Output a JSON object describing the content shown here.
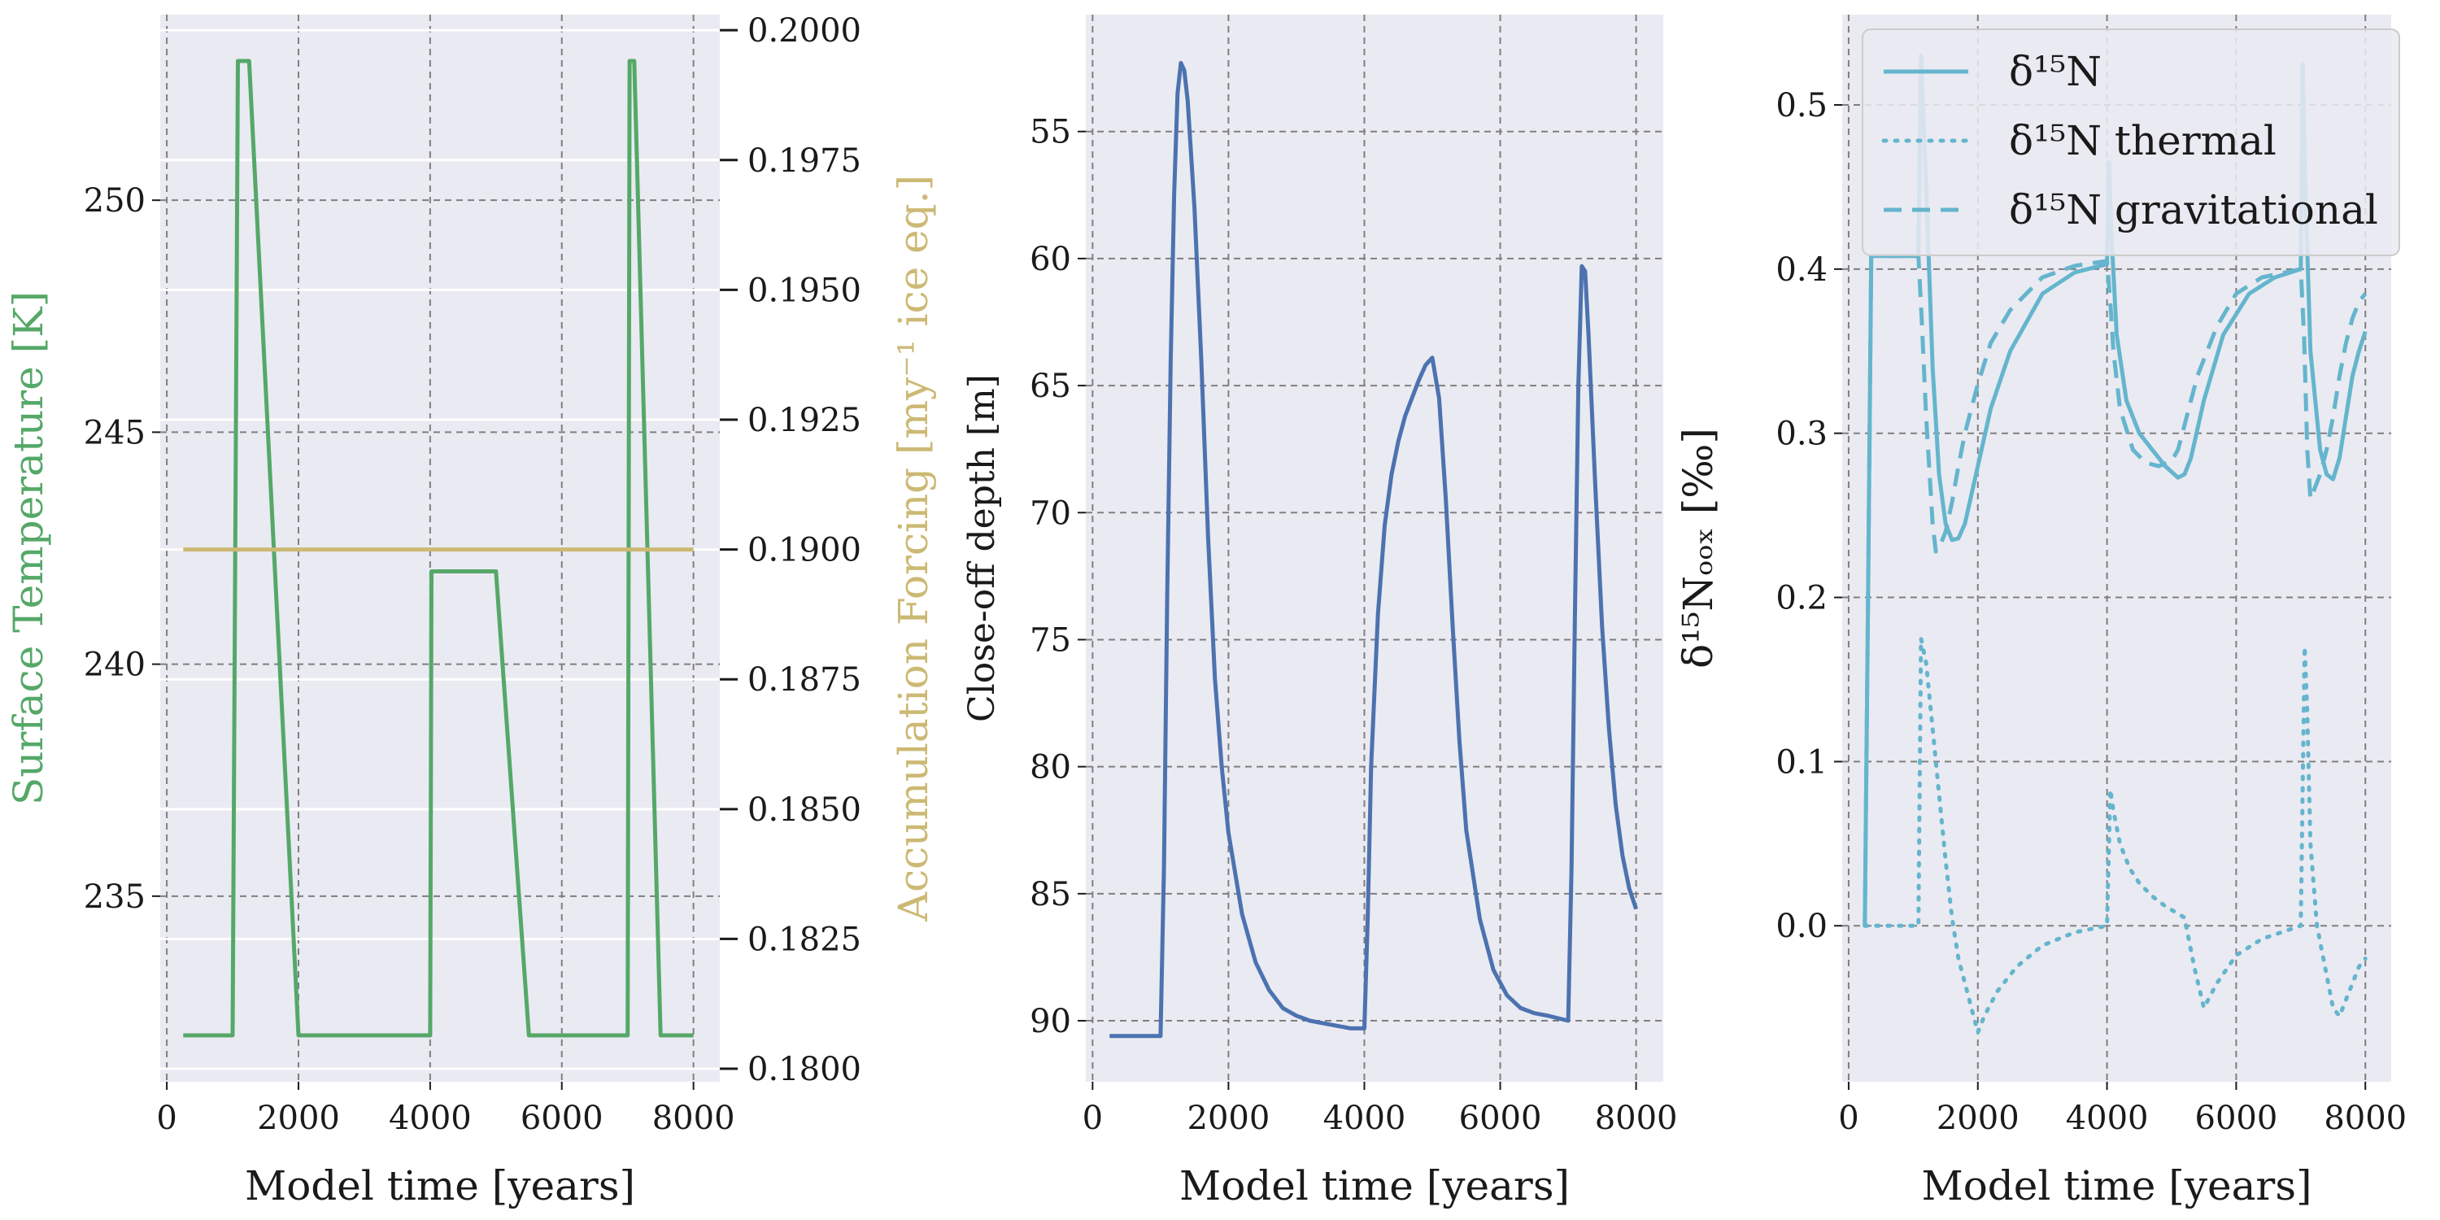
{
  "chart_data": [
    {
      "type": "line",
      "panel": "left",
      "xlabel": "Model time [years]",
      "ylabel": "Surface Temperature [K]",
      "ylabel_color": "#55a868",
      "y2label": "Accumulation Forcing [my⁻¹ ice eq.]",
      "y2label_color": "#ccb974",
      "xlim": [
        -100,
        8400
      ],
      "ylim": [
        231.0,
        254.0
      ],
      "y2lim": [
        0.17975,
        0.2003
      ],
      "xticks": [
        0,
        2000,
        4000,
        6000,
        8000
      ],
      "yticks": [
        235,
        240,
        245,
        250
      ],
      "y2ticks": [
        0.18,
        0.1825,
        0.185,
        0.1875,
        0.19,
        0.1925,
        0.195,
        0.1975,
        0.2
      ],
      "y2ticklabels": [
        "0.1800",
        "0.1825",
        "0.1850",
        "0.1875",
        "0.1900",
        "0.1925",
        "0.1950",
        "0.1975",
        "0.2000"
      ],
      "grid": true,
      "series": [
        {
          "axis": "left",
          "color": "#55a868",
          "style": "solid",
          "x": [
            250,
            1000,
            1080,
            1250,
            2000,
            4000,
            4020,
            5000,
            5500,
            7000,
            7030,
            7100,
            7500,
            8000
          ],
          "y": [
            232,
            232,
            253,
            253,
            232,
            232,
            242,
            242,
            232,
            232,
            253,
            253,
            232,
            232
          ]
        },
        {
          "axis": "right",
          "color": "#ccb974",
          "style": "solid",
          "x": [
            250,
            8000
          ],
          "y": [
            0.19,
            0.19
          ]
        }
      ]
    },
    {
      "type": "line",
      "panel": "middle",
      "xlabel": "Model time [years]",
      "ylabel": "Close-off depth [m]",
      "xlim": [
        -100,
        8400
      ],
      "ylim": [
        92.4,
        50.4
      ],
      "inverted_y": true,
      "xticks": [
        0,
        2000,
        4000,
        6000,
        8000
      ],
      "yticks": [
        55,
        60,
        65,
        70,
        75,
        80,
        85,
        90
      ],
      "grid": true,
      "series": [
        {
          "color": "#4c72b0",
          "style": "solid",
          "x": [
            250,
            1000,
            1050,
            1100,
            1150,
            1200,
            1250,
            1300,
            1350,
            1400,
            1500,
            1600,
            1700,
            1800,
            1900,
            2000,
            2200,
            2400,
            2600,
            2800,
            3000,
            3200,
            3400,
            3600,
            3800,
            4000,
            4050,
            4100,
            4200,
            4300,
            4400,
            4500,
            4600,
            4700,
            4800,
            4900,
            5000,
            5100,
            5200,
            5300,
            5400,
            5500,
            5700,
            5900,
            6100,
            6300,
            6500,
            6700,
            7000,
            7050,
            7100,
            7150,
            7200,
            7250,
            7300,
            7400,
            7500,
            7600,
            7700,
            7800,
            7900,
            8000
          ],
          "y": [
            90.6,
            90.6,
            84.0,
            73.0,
            64.0,
            57.5,
            53.5,
            52.3,
            52.6,
            53.8,
            58.0,
            64.0,
            71.0,
            76.5,
            80.0,
            82.6,
            85.8,
            87.7,
            88.8,
            89.5,
            89.8,
            90.0,
            90.1,
            90.2,
            90.3,
            90.3,
            86.0,
            80.0,
            74.0,
            70.5,
            68.5,
            67.2,
            66.2,
            65.5,
            64.8,
            64.2,
            63.9,
            65.5,
            69.5,
            74.5,
            79.0,
            82.5,
            86.0,
            88.0,
            89.0,
            89.5,
            89.7,
            89.8,
            90.0,
            84.0,
            74.0,
            65.0,
            60.3,
            60.5,
            63.0,
            69.0,
            74.5,
            78.5,
            81.5,
            83.5,
            84.8,
            85.6
          ]
        }
      ]
    },
    {
      "type": "line",
      "panel": "right",
      "xlabel": "Model time [years]",
      "ylabel": "δ¹⁵Nₒₒₓ [‰]",
      "ylim": [
        -0.095,
        0.555
      ],
      "xlim": [
        -100,
        8400
      ],
      "xticks": [
        0,
        2000,
        4000,
        6000,
        8000
      ],
      "yticks": [
        0.0,
        0.1,
        0.2,
        0.3,
        0.4,
        0.5
      ],
      "yticklabels": [
        "0.0",
        "0.1",
        "0.2",
        "0.3",
        "0.4",
        "0.5"
      ],
      "grid": true,
      "legend_placement": "upper-right",
      "series": [
        {
          "name": "δ¹⁵N",
          "color": "#64b5cd",
          "style": "solid",
          "x": [
            250,
            300,
            350,
            1000,
            1080,
            1120,
            1200,
            1300,
            1400,
            1500,
            1600,
            1700,
            1800,
            2000,
            2200,
            2500,
            3000,
            3500,
            4000,
            4030,
            4070,
            4150,
            4300,
            4500,
            4700,
            4900,
            5100,
            5200,
            5300,
            5500,
            5800,
            6200,
            6600,
            7000,
            7030,
            7070,
            7150,
            7300,
            7400,
            7500,
            7600,
            7700,
            7800,
            7900,
            8000
          ],
          "y": [
            0.0,
            0.2,
            0.408,
            0.408,
            0.408,
            0.53,
            0.45,
            0.34,
            0.275,
            0.245,
            0.235,
            0.236,
            0.245,
            0.28,
            0.315,
            0.35,
            0.385,
            0.398,
            0.403,
            0.465,
            0.42,
            0.36,
            0.32,
            0.3,
            0.29,
            0.28,
            0.273,
            0.275,
            0.285,
            0.32,
            0.36,
            0.385,
            0.395,
            0.4,
            0.525,
            0.45,
            0.35,
            0.29,
            0.275,
            0.272,
            0.285,
            0.31,
            0.335,
            0.35,
            0.362
          ]
        },
        {
          "name": "δ¹⁵N thermal",
          "color": "#64b5cd",
          "style": "dotted",
          "x": [
            250,
            1000,
            1080,
            1120,
            1200,
            1300,
            1400,
            1500,
            1600,
            1700,
            1800,
            1900,
            2000,
            2100,
            2300,
            2600,
            3000,
            3500,
            4000,
            4050,
            4100,
            4200,
            4350,
            4500,
            4700,
            4900,
            5200,
            5350,
            5500,
            5700,
            6000,
            6400,
            7000,
            7060,
            7100,
            7150,
            7250,
            7400,
            7500,
            7600,
            7700,
            7800,
            7900,
            8000
          ],
          "y": [
            0.0,
            0.0,
            0.0,
            0.175,
            0.16,
            0.12,
            0.08,
            0.04,
            0.005,
            -0.02,
            -0.035,
            -0.05,
            -0.065,
            -0.055,
            -0.04,
            -0.025,
            -0.012,
            -0.004,
            0.0,
            0.083,
            0.07,
            0.05,
            0.035,
            0.026,
            0.018,
            0.012,
            0.005,
            -0.025,
            -0.05,
            -0.035,
            -0.018,
            -0.008,
            0.0,
            0.17,
            0.13,
            0.05,
            0.0,
            -0.03,
            -0.05,
            -0.055,
            -0.045,
            -0.035,
            -0.025,
            -0.02
          ]
        },
        {
          "name": "δ¹⁵N gravitational",
          "color": "#64b5cd",
          "style": "dashed",
          "x": [
            250,
            300,
            350,
            1000,
            1080,
            1130,
            1200,
            1300,
            1350,
            1400,
            1500,
            1600,
            1700,
            1800,
            1900,
            2000,
            2200,
            2500,
            3000,
            3500,
            4000,
            4050,
            4100,
            4200,
            4400,
            4600,
            4800,
            5000,
            5100,
            5200,
            5400,
            5700,
            6000,
            6400,
            7000,
            7050,
            7100,
            7150,
            7200,
            7300,
            7400,
            7500,
            7600,
            7700,
            7800,
            7900,
            8000
          ],
          "y": [
            0.0,
            0.2,
            0.408,
            0.408,
            0.408,
            0.37,
            0.31,
            0.245,
            0.228,
            0.23,
            0.24,
            0.258,
            0.28,
            0.3,
            0.315,
            0.33,
            0.355,
            0.375,
            0.395,
            0.402,
            0.405,
            0.38,
            0.35,
            0.315,
            0.29,
            0.282,
            0.28,
            0.283,
            0.29,
            0.305,
            0.335,
            0.365,
            0.385,
            0.395,
            0.4,
            0.36,
            0.29,
            0.26,
            0.265,
            0.275,
            0.29,
            0.31,
            0.335,
            0.355,
            0.37,
            0.38,
            0.385
          ]
        }
      ]
    }
  ]
}
